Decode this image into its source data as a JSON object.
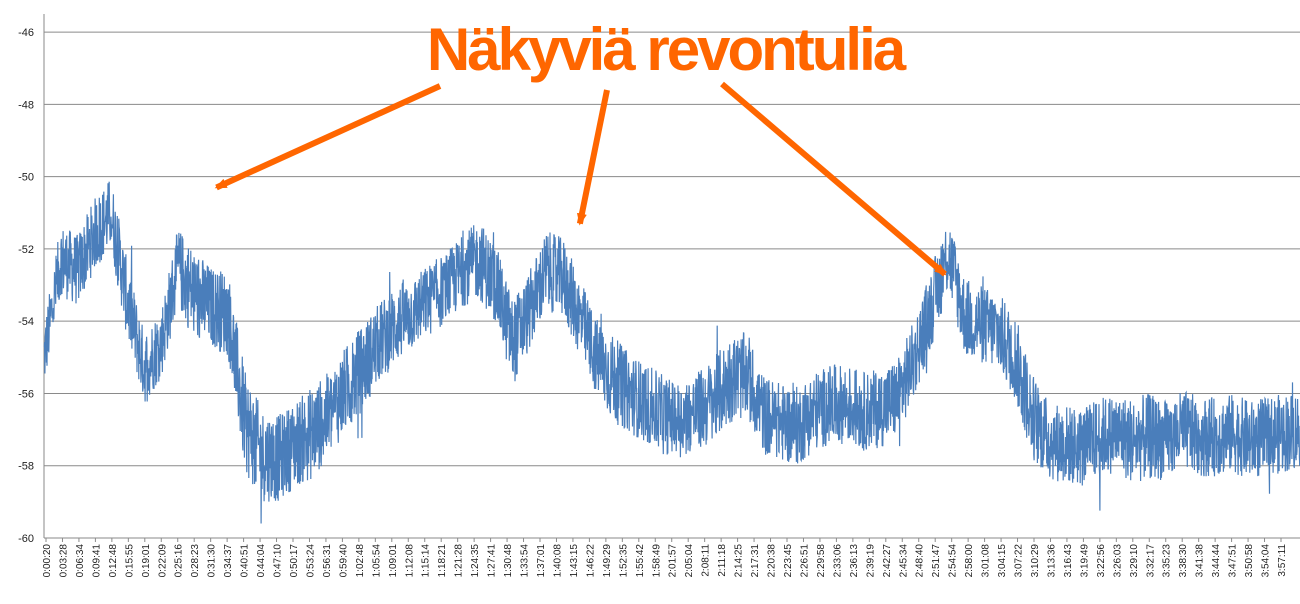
{
  "chart_data": {
    "type": "line",
    "title": "",
    "xlabel": "",
    "ylabel": "",
    "ylim": [
      -60,
      -45.5
    ],
    "yticks": [
      -46,
      -48,
      -50,
      -52,
      -54,
      -56,
      -58,
      -60
    ],
    "grid": true,
    "series_color": "#4a7ebb",
    "x_tick_labels": [
      "0:00:20",
      "0:03:28",
      "0:06:34",
      "0:09:41",
      "0:12:48",
      "0:15:55",
      "0:19:01",
      "0:22:09",
      "0:25:16",
      "0:28:23",
      "0:31:30",
      "0:34:37",
      "0:40:51",
      "0:44:04",
      "0:47:10",
      "0:50:17",
      "0:53:24",
      "0:56:31",
      "0:59:40",
      "1:02:48",
      "1:05:54",
      "1:09:01",
      "1:12:08",
      "1:15:14",
      "1:18:21",
      "1:21:28",
      "1:24:35",
      "1:27:41",
      "1:30:48",
      "1:33:54",
      "1:37:01",
      "1:40:08",
      "1:43:15",
      "1:46:22",
      "1:49:29",
      "1:52:35",
      "1:55:42",
      "1:58:49",
      "2:01:57",
      "2:05:04",
      "2:08:11",
      "2:11:18",
      "2:14:25",
      "2:17:31",
      "2:20:38",
      "2:23:45",
      "2:26:51",
      "2:29:58",
      "2:33:06",
      "2:36:13",
      "2:39:19",
      "2:42:27",
      "2:45:34",
      "2:48:40",
      "2:51:47",
      "2:54:54",
      "2:58:00",
      "3:01:08",
      "3:04:15",
      "3:07:22",
      "3:10:29",
      "3:13:36",
      "3:16:43",
      "3:19:49",
      "3:22:56",
      "3:26:03",
      "3:29:10",
      "3:32:17",
      "3:35:23",
      "3:38:30",
      "3:41:38",
      "3:44:44",
      "3:47:51",
      "3:50:58",
      "3:54:04",
      "3:57:11"
    ],
    "series": [
      {
        "x": [
          0,
          1,
          2,
          3,
          4,
          5,
          6,
          7,
          8,
          9,
          10,
          11,
          12,
          13,
          14,
          15,
          16,
          17,
          18,
          19,
          20,
          21,
          22,
          23,
          24,
          25,
          26,
          27,
          28,
          29,
          30,
          31,
          32,
          33,
          34,
          35,
          36,
          37,
          38,
          39,
          40,
          41,
          42,
          43,
          44,
          45,
          46,
          47,
          48,
          49,
          50,
          51,
          52,
          53,
          54,
          55,
          56,
          57,
          58,
          59,
          60,
          61,
          62,
          63,
          64,
          65,
          66,
          67,
          68,
          69,
          70,
          71,
          72,
          73,
          74,
          75
        ],
        "y": [
          -55.0,
          -52.3,
          -52.6,
          -51.6,
          -51.0,
          -53.5,
          -55.3,
          -54.6,
          -52.5,
          -53.3,
          -53.6,
          -53.8,
          -56.8,
          -57.7,
          -57.8,
          -57.4,
          -57.1,
          -56.6,
          -55.9,
          -55.3,
          -54.6,
          -54.1,
          -53.8,
          -53.4,
          -53.1,
          -52.6,
          -52.3,
          -53.0,
          -54.6,
          -53.7,
          -52.6,
          -52.8,
          -53.9,
          -55.0,
          -55.6,
          -56.0,
          -56.3,
          -56.6,
          -56.7,
          -56.5,
          -56.2,
          -55.6,
          -55.5,
          -56.6,
          -56.8,
          -56.9,
          -56.5,
          -56.3,
          -56.3,
          -56.5,
          -56.4,
          -56.1,
          -55.0,
          -53.6,
          -52.1,
          -53.9,
          -54.1,
          -54.3,
          -55.0,
          -56.6,
          -57.3,
          -57.4,
          -57.5,
          -57.2,
          -57.1,
          -57.3,
          -57.2,
          -57.3,
          -57.0,
          -57.2,
          -57.2,
          -57.1,
          -57.3,
          -57.2,
          -57.1,
          -57.0
        ],
        "spread": [
          0.9,
          1.0,
          1.0,
          1.0,
          1.0,
          1.1,
          1.0,
          1.0,
          1.1,
          1.3,
          1.1,
          1.2,
          1.4,
          1.3,
          1.2,
          1.2,
          1.3,
          1.2,
          1.2,
          1.2,
          1.1,
          1.1,
          1.0,
          1.0,
          1.0,
          1.0,
          1.1,
          1.1,
          1.2,
          1.1,
          1.1,
          1.1,
          1.1,
          1.1,
          1.2,
          1.1,
          1.1,
          1.1,
          1.0,
          1.1,
          1.2,
          1.2,
          1.2,
          1.1,
          1.1,
          1.1,
          1.1,
          1.1,
          1.1,
          1.1,
          1.1,
          1.1,
          1.1,
          1.1,
          1.1,
          1.1,
          1.1,
          1.1,
          1.2,
          1.2,
          1.1,
          1.1,
          1.1,
          1.1,
          1.1,
          1.2,
          1.2,
          1.1,
          1.1,
          1.1,
          1.1,
          1.1,
          1.1,
          1.1,
          1.1,
          1.1
        ]
      }
    ],
    "annotation": {
      "text": "Näkyviä revontulia",
      "color": "#ff6600",
      "arrow_targets": [
        {
          "x": 10.3,
          "y": -50.3
        },
        {
          "x": 32.0,
          "y": -51.3
        },
        {
          "x": 53.8,
          "y": -52.7
        }
      ]
    }
  }
}
